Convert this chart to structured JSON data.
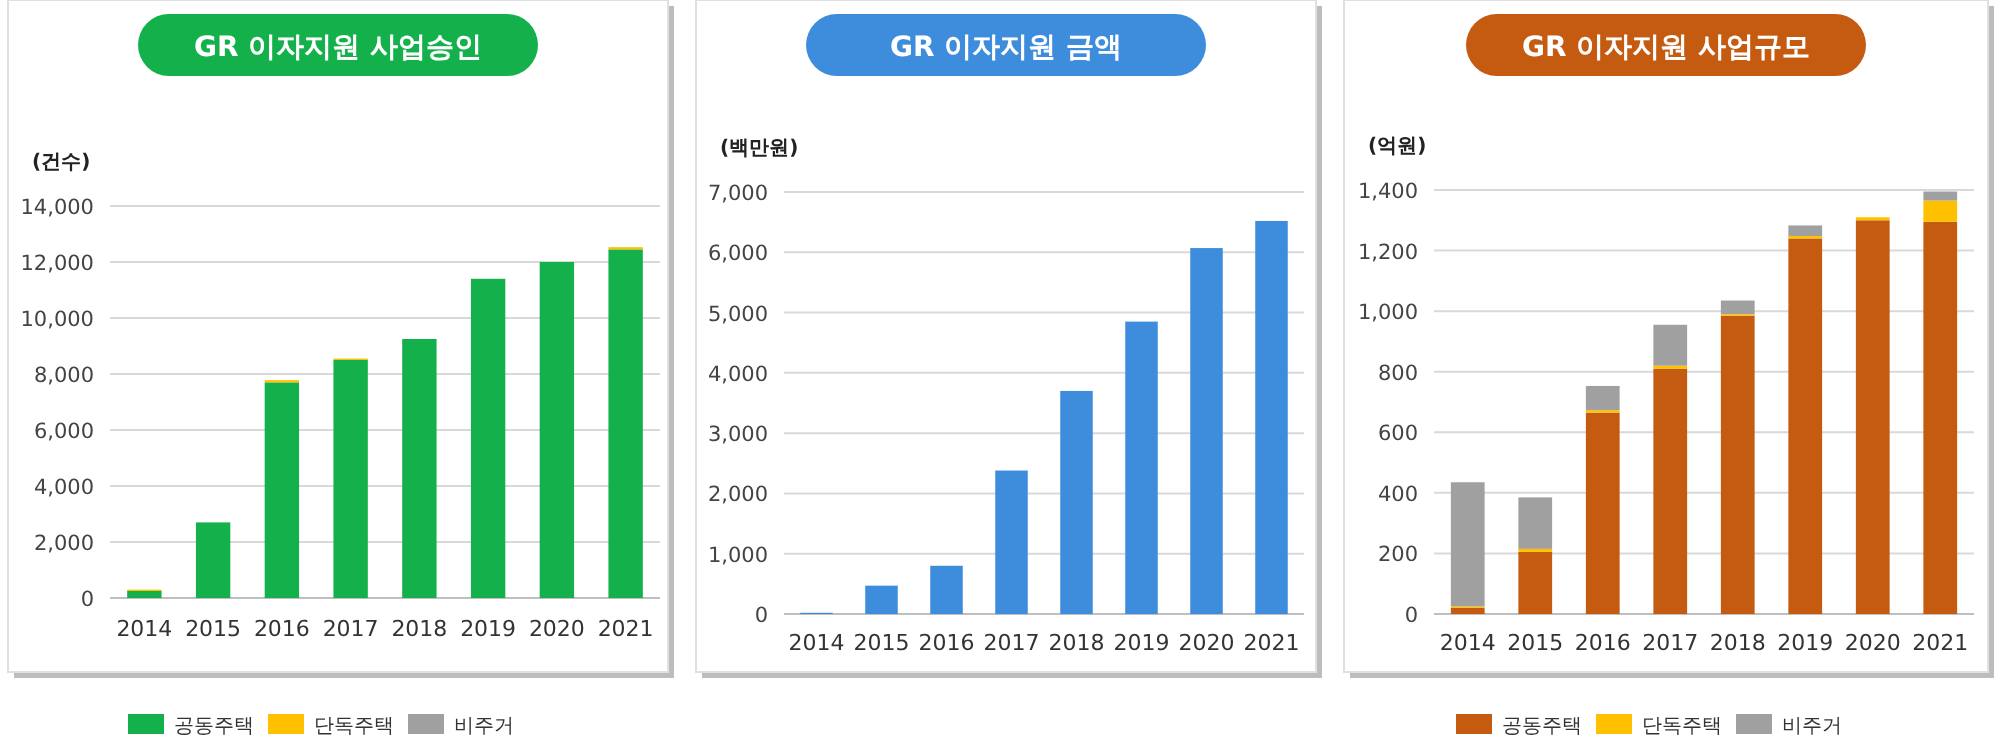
{
  "chart_data": [
    {
      "type": "bar",
      "title": "GR 이자지원 사업승인",
      "ylabel": "(건수)",
      "categories": [
        "2014",
        "2015",
        "2016",
        "2017",
        "2018",
        "2019",
        "2020",
        "2021"
      ],
      "stacked": true,
      "series": [
        {
          "name": "공동주택",
          "color": "#13b04b",
          "values": [
            250,
            2700,
            7700,
            8500,
            9250,
            11400,
            12000,
            12450
          ]
        },
        {
          "name": "단독주택",
          "color": "#ffc000",
          "values": [
            50,
            0,
            80,
            50,
            0,
            0,
            0,
            80
          ]
        },
        {
          "name": "비주거",
          "color": "#a0a0a0",
          "values": [
            0,
            0,
            0,
            0,
            0,
            0,
            0,
            0
          ]
        }
      ],
      "ylim": [
        0,
        14000
      ],
      "yticks": [
        0,
        {
          "value": 2000,
          "label": "2,000"
        },
        {
          "value": 4000,
          "label": "4,000"
        },
        {
          "value": 6000,
          "label": "6,000"
        },
        {
          "value": 8000,
          "label": "8,000"
        },
        {
          "value": 10000,
          "label": "10,000"
        },
        {
          "value": 12000,
          "label": "12,000"
        },
        {
          "value": 14000,
          "label": "14,000"
        }
      ],
      "grid": "y",
      "legend": "bottom"
    },
    {
      "type": "bar",
      "title": "GR 이자지원 금액",
      "ylabel": "(백만원)",
      "categories": [
        "2014",
        "2015",
        "2016",
        "2017",
        "2018",
        "2019",
        "2020",
        "2021"
      ],
      "series": [
        {
          "color": "#3d8ddc",
          "values": [
            20,
            470,
            800,
            2380,
            3700,
            4850,
            6070,
            6520
          ]
        }
      ],
      "ylim": [
        0,
        7000
      ],
      "yticks": [
        0,
        {
          "value": 1000,
          "label": "1,000"
        },
        {
          "value": 2000,
          "label": "2,000"
        },
        {
          "value": 3000,
          "label": "3,000"
        },
        {
          "value": 4000,
          "label": "4,000"
        },
        {
          "value": 5000,
          "label": "5,000"
        },
        {
          "value": 6000,
          "label": "6,000"
        },
        {
          "value": 7000,
          "label": "7,000"
        }
      ],
      "grid": "y"
    },
    {
      "type": "bar",
      "title": "GR 이자지원 사업규모",
      "ylabel": "(억원)",
      "categories": [
        "2014",
        "2015",
        "2016",
        "2017",
        "2018",
        "2019",
        "2020",
        "2021"
      ],
      "stacked": true,
      "series": [
        {
          "name": "공동주택",
          "color": "#c55a11",
          "values": [
            20,
            205,
            665,
            810,
            985,
            1240,
            1300,
            1295
          ]
        },
        {
          "name": "단독주택",
          "color": "#ffc000",
          "values": [
            5,
            10,
            8,
            10,
            5,
            8,
            10,
            70
          ]
        },
        {
          "name": "비주거",
          "color": "#a0a0a0",
          "values": [
            410,
            170,
            80,
            135,
            45,
            35,
            0,
            30
          ]
        }
      ],
      "ylim": [
        0,
        1400
      ],
      "yticks": [
        0,
        200,
        400,
        600,
        800,
        {
          "value": 1000,
          "label": "1,000"
        },
        {
          "value": 1200,
          "label": "1,200"
        },
        {
          "value": 1400,
          "label": "1,400"
        }
      ],
      "grid": "y",
      "legend": "bottom"
    }
  ]
}
